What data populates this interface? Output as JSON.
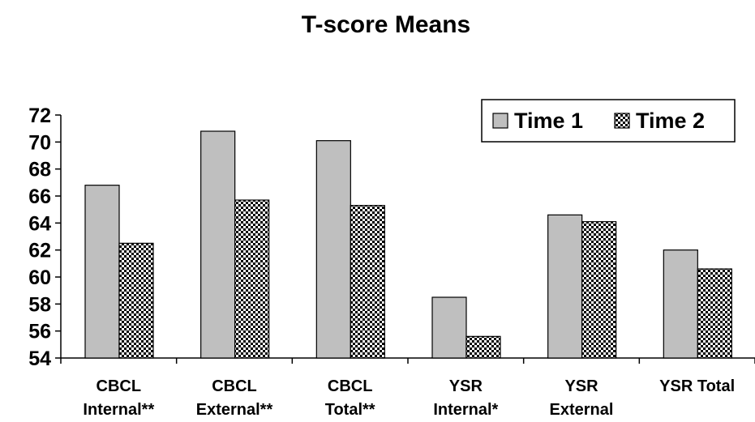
{
  "chart_data": {
    "type": "bar",
    "title": "T-score Means",
    "categories": [
      [
        "CBCL",
        "Internal**"
      ],
      [
        "CBCL",
        "External**"
      ],
      [
        "CBCL",
        "Total**"
      ],
      [
        "YSR",
        "Internal*"
      ],
      [
        "YSR",
        "External"
      ],
      [
        "YSR Total"
      ]
    ],
    "series": [
      {
        "name": "Time 1",
        "values": [
          66.8,
          70.8,
          70.1,
          58.5,
          64.6,
          62.0
        ],
        "color": "#bfbfbf",
        "pattern": "solid"
      },
      {
        "name": "Time 2",
        "values": [
          62.5,
          65.7,
          65.3,
          55.6,
          64.1,
          60.6
        ],
        "color": "#000000",
        "pattern": "checkerboard"
      }
    ],
    "ylim": [
      54,
      72
    ],
    "yticks": [
      54,
      56,
      58,
      60,
      62,
      64,
      66,
      68,
      70,
      72
    ],
    "xlabel": "",
    "ylabel": "",
    "legend": "top-right",
    "grid": false
  }
}
